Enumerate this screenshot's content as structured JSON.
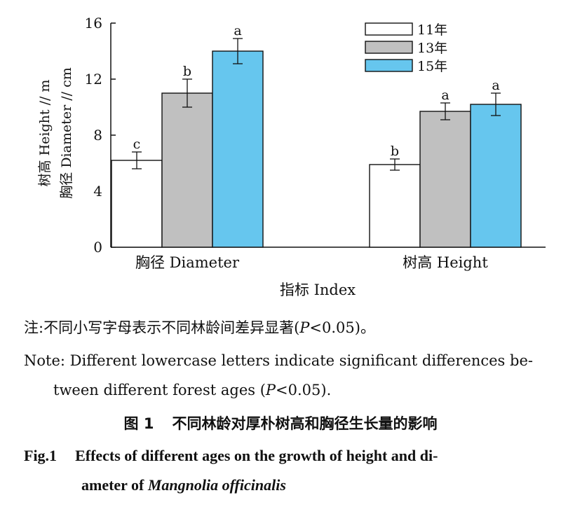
{
  "chart_data": {
    "type": "bar",
    "categories": [
      "胸径 Diameter",
      "树高 Height"
    ],
    "series": [
      {
        "name": "11年",
        "color": "#ffffff",
        "values": [
          6.2,
          5.9
        ],
        "errors": [
          0.6,
          0.4
        ],
        "letters": [
          "c",
          "b"
        ]
      },
      {
        "name": "13年",
        "color": "#c0c0c0",
        "values": [
          11.0,
          9.7
        ],
        "errors": [
          1.0,
          0.6
        ],
        "letters": [
          "b",
          "a"
        ]
      },
      {
        "name": "15年",
        "color": "#66c6ee",
        "values": [
          14.0,
          10.2
        ],
        "errors": [
          0.9,
          0.8
        ],
        "letters": [
          "a",
          "a"
        ]
      }
    ],
    "ylim": [
      0,
      16
    ],
    "yticks": [
      0,
      4,
      8,
      12,
      16
    ],
    "ylabel_line1": "树高 Height // m",
    "ylabel_line2": "胸径 Diameter // cm",
    "xlabel": "指标 Index",
    "legend_position": "top-right",
    "grid": false
  },
  "caption": {
    "note_cn_prefix": "注:不同小写字母表示不同林龄间差异显著(",
    "note_cn_p": "P",
    "note_cn_suffix": "<0.05)。",
    "note_en_line1": "Note: Different lowercase letters indicate significant differences be-",
    "note_en_line2_prefix": "tween different forest ages (",
    "note_en_p": "P",
    "note_en_line2_suffix": "<0.05).",
    "fig_cn_number": "图 1",
    "fig_cn_title": "不同林龄对厚朴树高和胸径生长量的影响",
    "fig_en_number": "Fig.1",
    "fig_en_line1": "Effects of different ages on the growth of height and di-",
    "fig_en_line2_prefix": "ameter of ",
    "fig_en_species": "Mangnolia officinalis"
  }
}
